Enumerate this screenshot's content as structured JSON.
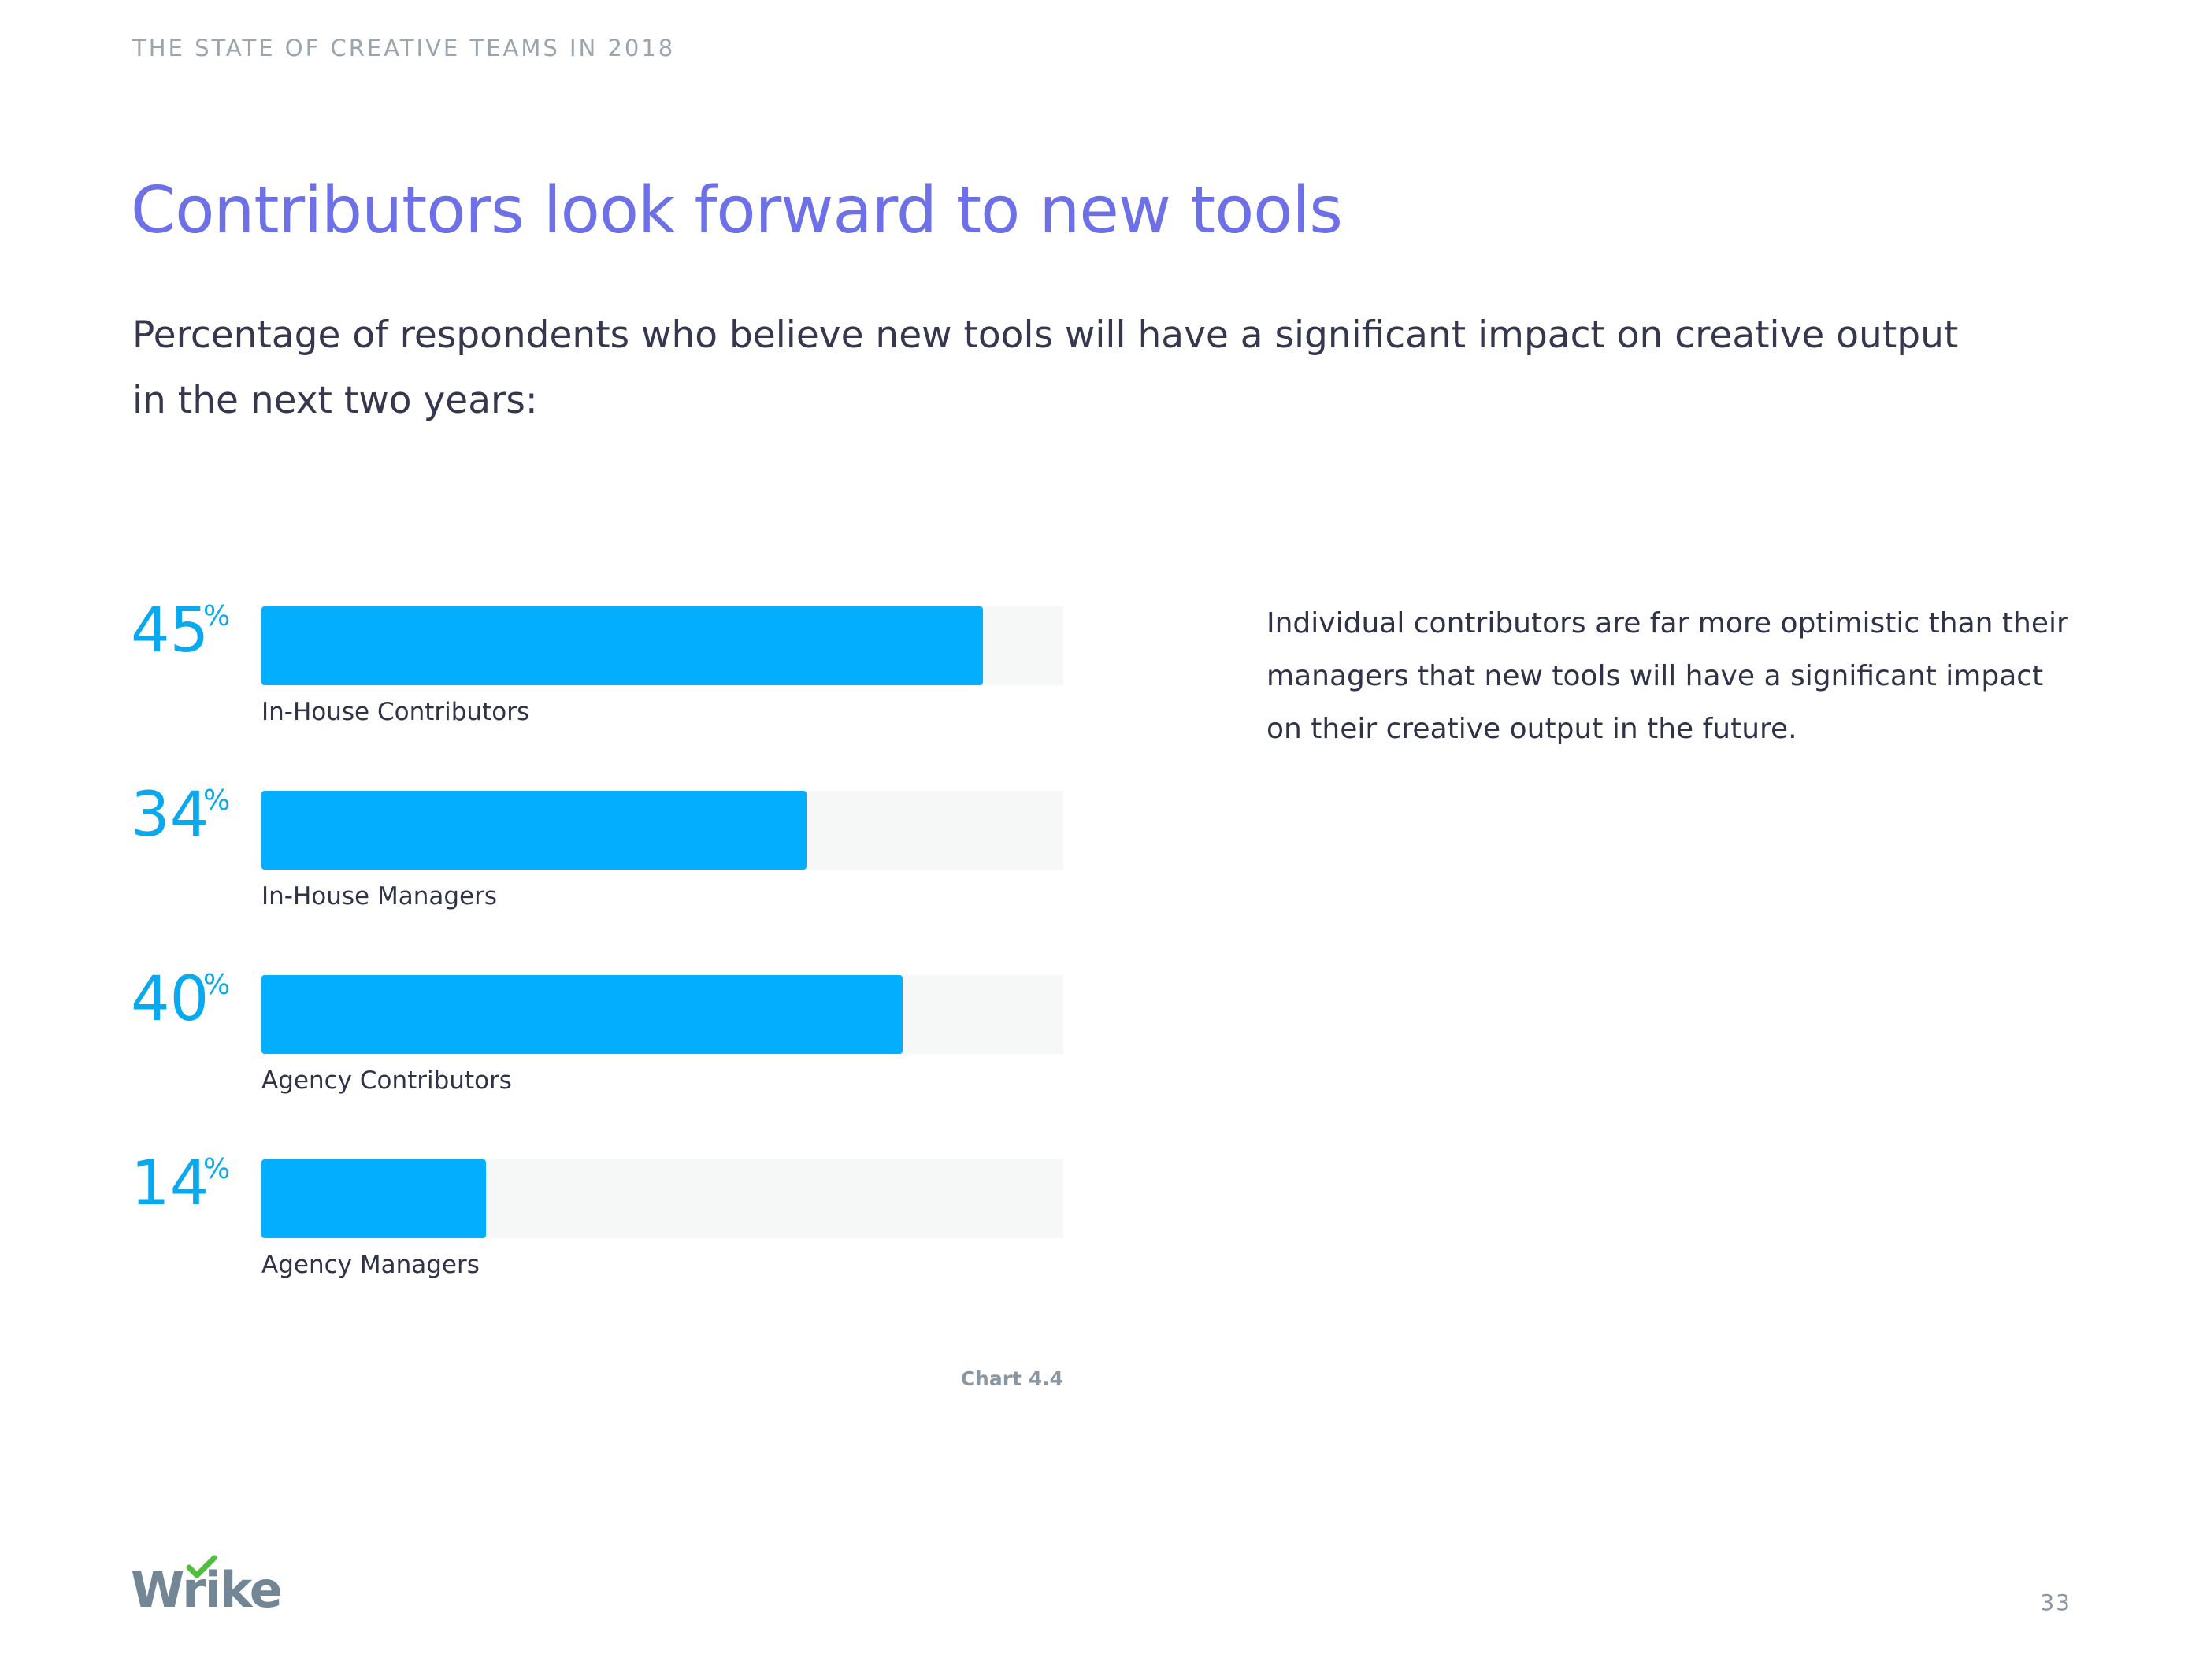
{
  "header": {
    "running_title": "THE STATE OF CREATIVE TEAMS IN 2018"
  },
  "page": {
    "title": "Contributors look forward to new tools",
    "subtitle_lines": [
      "Percentage of respondents who believe new tools will have a significant impact on creative output",
      "in the next two years:"
    ],
    "note_lines": [
      "Individual contributors are far more optimistic than their",
      "managers that new tools will have a significant impact",
      "on their creative output in the future."
    ],
    "page_number": "33"
  },
  "brand": {
    "logo_text": "Wrike",
    "logo_check_color": "#4fbf3f",
    "logo_color": "#738696"
  },
  "colors": {
    "title": "#6d70e6",
    "bar": "#03aeff",
    "bar_track": "#f6f7f7",
    "percent_text": "#0aa9ef"
  },
  "chart_data": {
    "type": "bar",
    "orientation": "horizontal",
    "categories": [
      "In-House Contributors",
      "In-House Managers",
      "Agency Contributors",
      "Agency Managers"
    ],
    "values": [
      45,
      34,
      40,
      14
    ],
    "value_labels": [
      "45",
      "34",
      "40",
      "14"
    ],
    "unit": "%",
    "xlim": [
      0,
      50
    ],
    "grid": false,
    "caption": "Chart 4.4"
  }
}
